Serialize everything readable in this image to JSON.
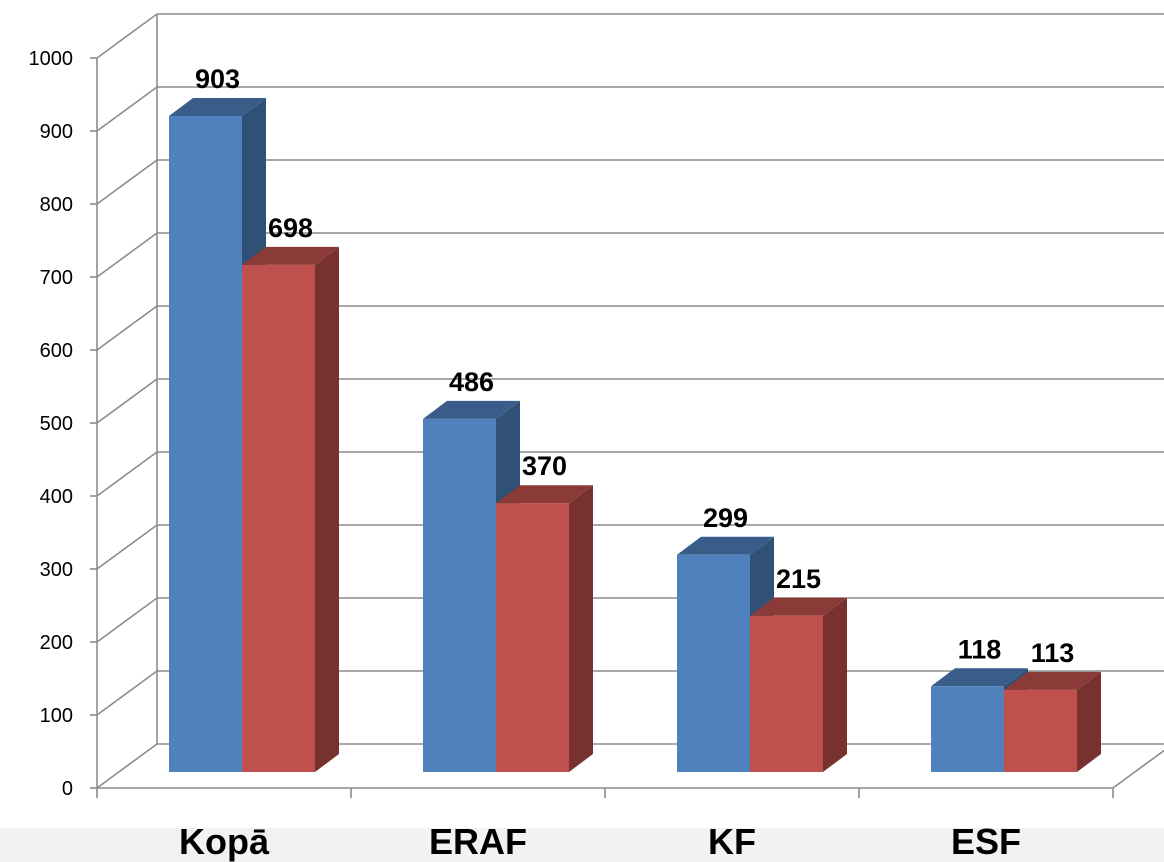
{
  "chart_data": {
    "type": "bar",
    "categories": [
      "Kopā",
      "ERAF",
      "KF",
      "ESF"
    ],
    "series": [
      {
        "values": [
          903,
          486,
          299,
          118
        ],
        "color": "#4f81bd"
      },
      {
        "values": [
          698,
          370,
          215,
          113
        ],
        "color": "#c0504d"
      }
    ],
    "ylim": [
      0,
      1000
    ],
    "yticks": [
      0,
      100,
      200,
      300,
      400,
      500,
      600,
      700,
      800,
      900,
      1000
    ],
    "grid": true,
    "style": "3d-clustered-column"
  }
}
